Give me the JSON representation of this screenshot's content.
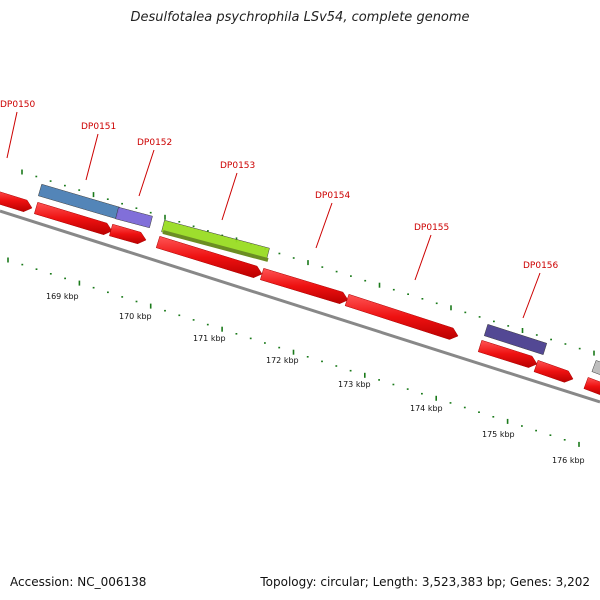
{
  "title": "Desulfotalea psychrophila LSv54, complete genome",
  "footer": {
    "accession": "Accession: NC_006138",
    "summary": "Topology: circular; Length: 3,523,383 bp; Genes: 3,202"
  },
  "genes": [
    {
      "id": "DP0150",
      "label": "DP0150"
    },
    {
      "id": "DP0151",
      "label": "DP0151"
    },
    {
      "id": "DP0152",
      "label": "DP0152"
    },
    {
      "id": "DP0153",
      "label": "DP0153"
    },
    {
      "id": "DP0154",
      "label": "DP0154"
    },
    {
      "id": "DP0155",
      "label": "DP0155"
    },
    {
      "id": "DP0156",
      "label": "DP0156"
    }
  ],
  "kbp_ticks": [
    "169 kbp",
    "170 kbp",
    "171 kbp",
    "172 kbp",
    "173 kbp",
    "174 kbp",
    "175 kbp",
    "176 kbp"
  ],
  "colors": {
    "cds": "#ee1111",
    "backbone": "#888888",
    "tick": "#1a7a1a",
    "label": "#cc0000",
    "cog_blue": "#4a7fb5",
    "cog_violet": "#7b68d8",
    "cog_lime": "#99dd22",
    "cog_olive": "#6b8e23",
    "cog_indigo": "#4a3f8f",
    "cog_grey": "#bbbbbb"
  }
}
